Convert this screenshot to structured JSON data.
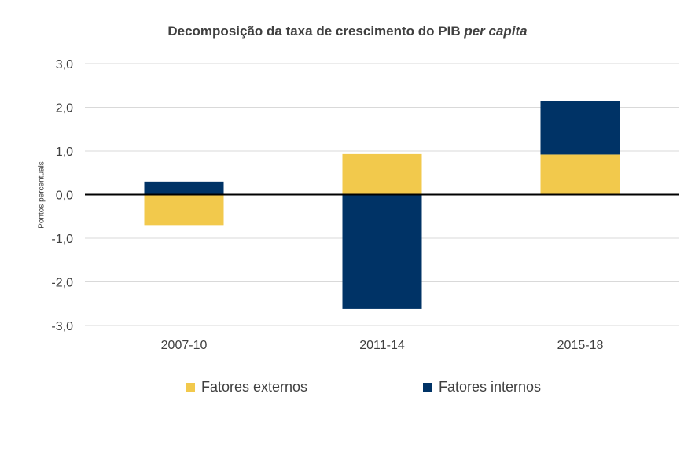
{
  "chart_data": {
    "type": "bar",
    "stacked": true,
    "title": "Decomposição  da taxa de crescimento do PIB",
    "title_italic": "per capita",
    "ylabel": "Pontos percentuais",
    "xlabel": "",
    "categories": [
      "2007-10",
      "2011-14",
      "2015-18"
    ],
    "series": [
      {
        "name": "Fatores externos",
        "color": "#F2C94C",
        "values": [
          -0.7,
          0.93,
          0.92
        ]
      },
      {
        "name": "Fatores internos",
        "color": "#003366",
        "values": [
          0.3,
          -2.62,
          1.23
        ]
      }
    ],
    "ylim": [
      -3.0,
      3.0
    ],
    "yticks": [
      3.0,
      2.0,
      1.0,
      0.0,
      -1.0,
      -2.0,
      -3.0
    ],
    "ytick_labels": [
      "3,0",
      "2,0",
      "1,0",
      "0,0",
      "-1,0",
      "-2,0",
      "-3,0"
    ],
    "grid": true,
    "legend_position": "bottom"
  }
}
